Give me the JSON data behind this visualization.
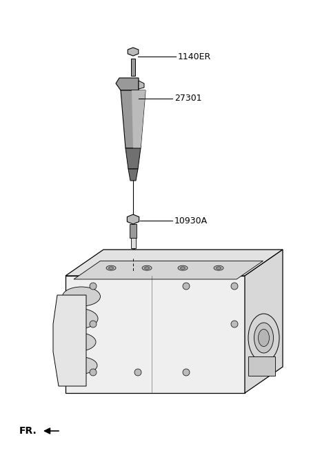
{
  "bg_color": "#ffffff",
  "lc": "#000000",
  "dark": "#707070",
  "mid": "#999999",
  "light": "#bbbbbb",
  "vlight": "#dddddd",
  "label_1140ER": "1140ER",
  "label_27301": "27301",
  "label_10930A": "10930A",
  "label_FR": "FR.",
  "figw": 4.8,
  "figh": 6.57,
  "dpi": 100
}
